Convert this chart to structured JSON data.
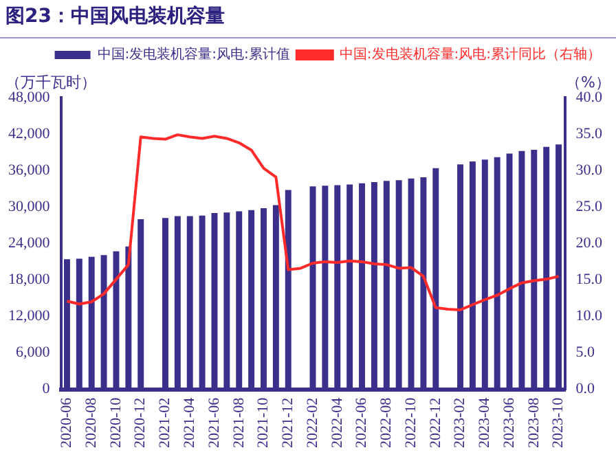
{
  "chart_data": {
    "type": "bar",
    "title": "图23：中国风电装机容量",
    "ylabel": "（万千瓦时）",
    "y2label": "（%）",
    "categories": [
      "2020-06",
      null,
      "2020-08",
      null,
      "2020-10",
      null,
      "2020-12",
      null,
      "2021-02",
      null,
      "2021-04",
      null,
      "2021-06",
      null,
      "2021-08",
      null,
      "2021-10",
      null,
      "2021-12",
      null,
      "2022-02",
      null,
      "2022-04",
      null,
      "2022-06",
      null,
      "2022-08",
      null,
      "2022-10",
      null,
      "2022-12",
      null,
      "2023-02",
      null,
      "2023-04",
      null,
      "2023-06",
      null,
      "2023-08",
      null,
      "2023-10"
    ],
    "series": [
      {
        "name": "中国:发电装机容量:风电:累计值",
        "color": "#3b2f8c",
        "values": [
          21400,
          21500,
          21800,
          22100,
          22700,
          23500,
          28000,
          null,
          28200,
          28500,
          28500,
          28600,
          29000,
          29100,
          29300,
          29500,
          29800,
          30300,
          32800,
          null,
          33400,
          33500,
          33600,
          33700,
          33900,
          34100,
          34300,
          34400,
          34700,
          34900,
          36400,
          null,
          37000,
          37500,
          37800,
          38200,
          38800,
          39200,
          39400,
          39900,
          40300
        ]
      },
      {
        "name": "中国:发电装机容量:风电:累计同比（右轴）",
        "type": "line",
        "axis": "y2",
        "color": "#ff2a2a",
        "values": [
          12.1,
          11.7,
          12.0,
          13.1,
          15.1,
          17.1,
          34.6,
          34.4,
          34.3,
          34.9,
          34.6,
          34.4,
          34.7,
          34.4,
          33.8,
          32.8,
          30.3,
          29.1,
          16.4,
          16.6,
          17.3,
          17.5,
          17.4,
          17.6,
          17.5,
          17.2,
          17.1,
          16.6,
          16.7,
          15.5,
          11.2,
          11.0,
          10.9,
          11.6,
          12.3,
          12.9,
          13.8,
          14.6,
          14.9,
          15.1,
          15.5
        ]
      }
    ],
    "ylim": [
      0,
      48000
    ],
    "yticks": [
      {
        "value": 0,
        "label": "0"
      },
      {
        "value": 6000,
        "label": "6,000"
      },
      {
        "value": 12000,
        "label": "12,000"
      },
      {
        "value": 18000,
        "label": "18,000"
      },
      {
        "value": 24000,
        "label": "24,000"
      },
      {
        "value": 30000,
        "label": "30,000"
      },
      {
        "value": 36000,
        "label": "36,000"
      },
      {
        "value": 42000,
        "label": "42,000"
      },
      {
        "value": 48000,
        "label": "48,000"
      }
    ],
    "y2lim": [
      0,
      40
    ],
    "y2ticks": [
      {
        "value": 0,
        "label": "0.0"
      },
      {
        "value": 5,
        "label": "5.0"
      },
      {
        "value": 10,
        "label": "10.0"
      },
      {
        "value": 15,
        "label": "15.0"
      },
      {
        "value": 20,
        "label": "20.0"
      },
      {
        "value": 25,
        "label": "25.0"
      },
      {
        "value": 30,
        "label": "30.0"
      },
      {
        "value": 35,
        "label": "35.0"
      },
      {
        "value": 40,
        "label": "40.0"
      }
    ],
    "legend": "top right",
    "grid": false,
    "marker": "none"
  }
}
